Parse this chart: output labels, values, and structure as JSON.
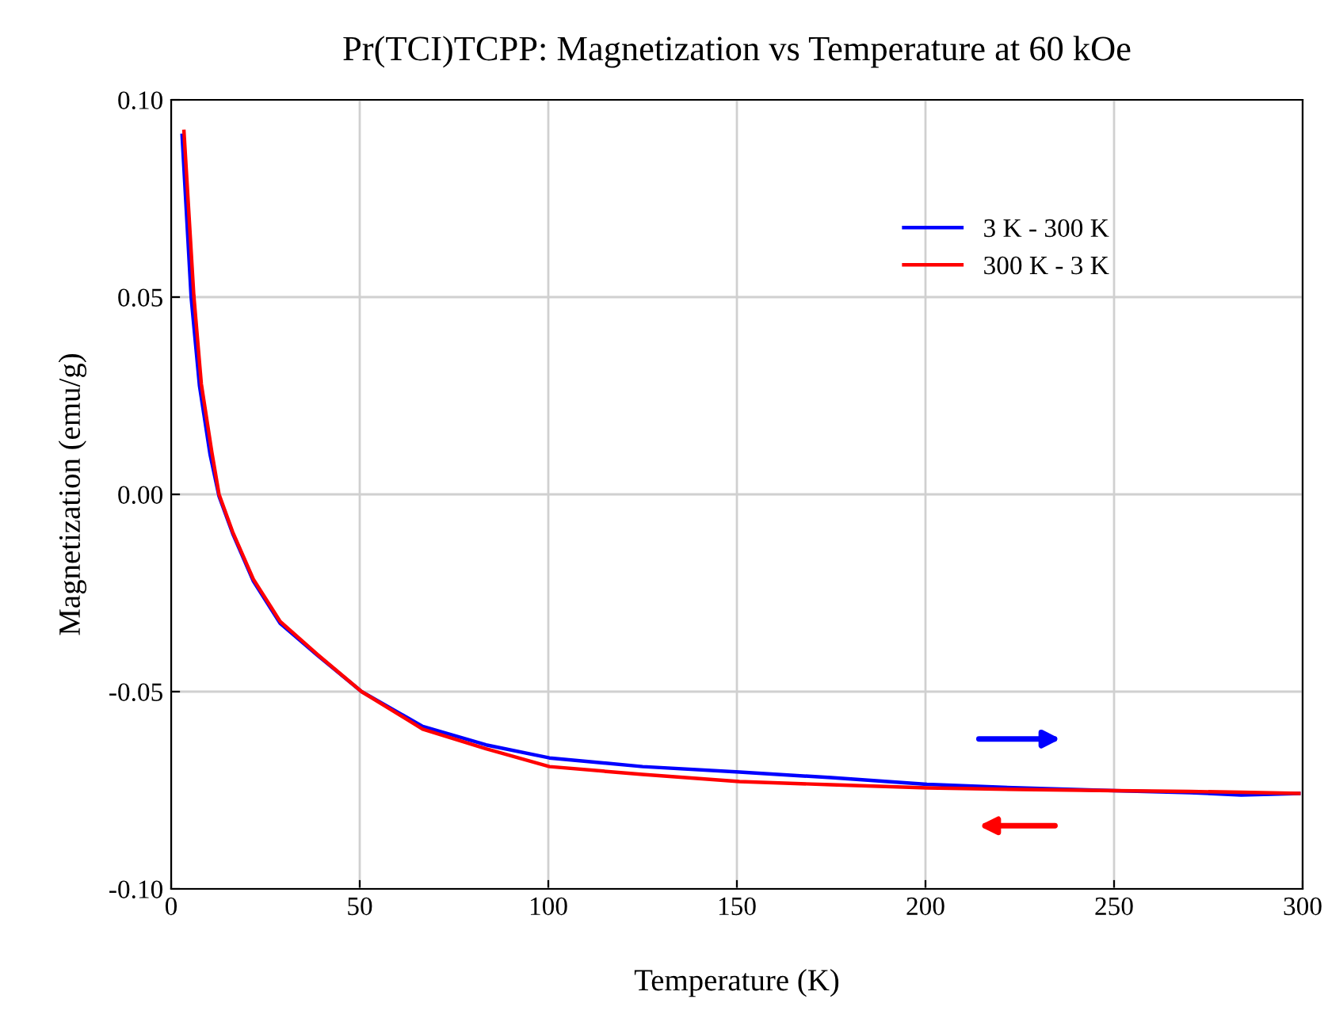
{
  "chart_data": {
    "type": "line",
    "title": "Pr(TCI)TCPP: Magnetization vs Temperature at 60 kOe",
    "xlabel": "Temperature (K)",
    "ylabel": "Magnetization (emu/g)",
    "xlim": [
      0,
      300
    ],
    "ylim": [
      -0.1,
      0.1
    ],
    "xticks": [
      0,
      50,
      100,
      150,
      200,
      250,
      300
    ],
    "yticks": [
      {
        "value": -0.1,
        "label": "-0.10"
      },
      {
        "value": -0.05,
        "label": "-0.05"
      },
      {
        "value": 0,
        "label": "0.00"
      },
      {
        "value": 0.05,
        "label": "0.05"
      },
      {
        "value": 0.1,
        "label": "0.10"
      }
    ],
    "grid": true,
    "legend": "top right",
    "line_style": "solid",
    "marker": "none",
    "series": [
      {
        "name": "3 K - 300 K",
        "color": "#0000ff",
        "x": [
          2.9,
          5.3,
          7.5,
          10.3,
          12.7,
          16.3,
          21.8,
          28.9,
          38.7,
          50.5,
          66.7,
          83.5,
          100.3,
          125,
          150.7,
          175,
          200.4,
          225,
          250.1,
          270,
          283.7,
          299
        ],
        "values": [
          0.091,
          0.05,
          0.0276,
          0.0102,
          -0.0005,
          -0.0099,
          -0.022,
          -0.0327,
          -0.0407,
          -0.05,
          -0.0588,
          -0.0635,
          -0.0668,
          -0.069,
          -0.0704,
          -0.0718,
          -0.0735,
          -0.0744,
          -0.0751,
          -0.0756,
          -0.0762,
          -0.0758
        ]
      },
      {
        "name": "300 K - 3 K",
        "color": "#ff0000",
        "x": [
          3.4,
          6.0,
          8.0,
          10.8,
          12.7,
          16.3,
          21.8,
          28.9,
          38.7,
          50.5,
          66.7,
          83.5,
          100.3,
          125,
          150.7,
          175,
          200.4,
          225,
          250.1,
          270,
          283.7,
          299
        ],
        "values": [
          0.092,
          0.0505,
          0.028,
          0.0106,
          0.0,
          -0.0095,
          -0.0215,
          -0.0322,
          -0.0405,
          -0.05,
          -0.0595,
          -0.0645,
          -0.069,
          -0.071,
          -0.0728,
          -0.0736,
          -0.0744,
          -0.0748,
          -0.0751,
          -0.0753,
          -0.0755,
          -0.0758
        ]
      }
    ]
  }
}
